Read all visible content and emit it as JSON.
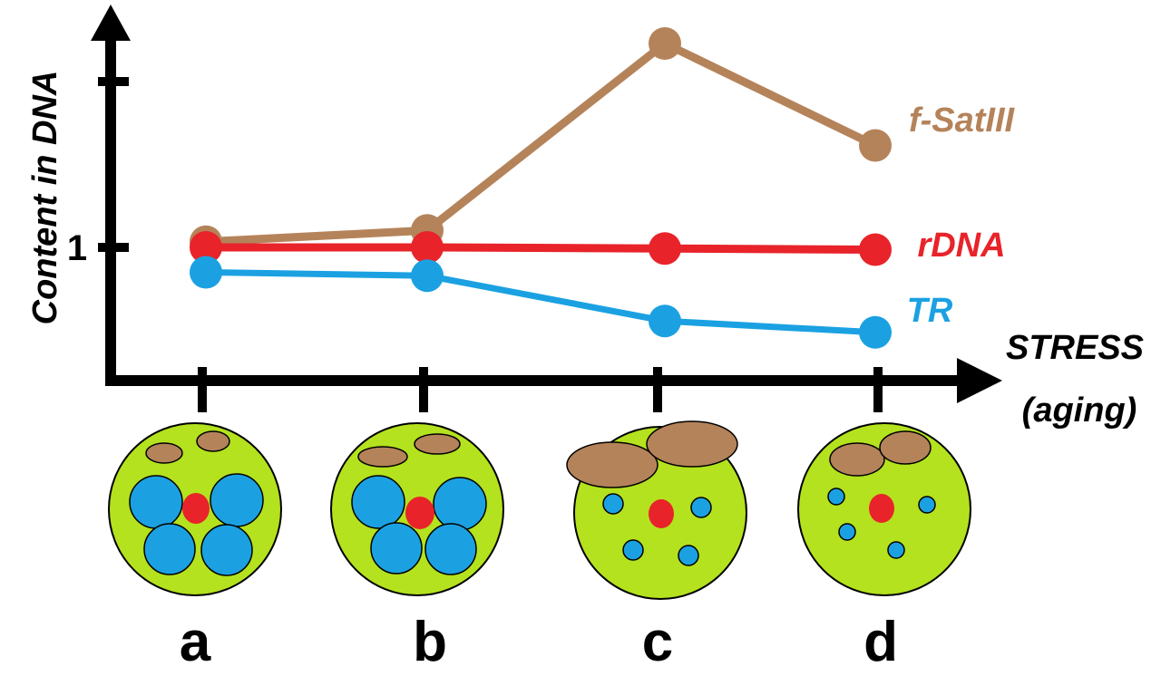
{
  "y_axis_label": "Content in DNA",
  "y_tick_label": "1",
  "x_axis_label": {
    "line1": "STRESS",
    "line2": "(aging)"
  },
  "categories": [
    "a",
    "b",
    "c",
    "d"
  ],
  "series": [
    {
      "name": "f-SatIII",
      "values": [
        1.05,
        1.15,
        2.8,
        1.9
      ],
      "color": "#b5835a"
    },
    {
      "name": "rDNA",
      "values": [
        1.0,
        1.0,
        0.99,
        0.98
      ],
      "color": "#e8232a"
    },
    {
      "name": "TR",
      "values": [
        0.78,
        0.75,
        0.35,
        0.25
      ],
      "color": "#1ba1e2"
    }
  ],
  "colors": {
    "nucleus": "#b4e21e",
    "satellite_body": "#b5835a",
    "tr_body": "#1ba1e2",
    "rdna_body": "#e8232a",
    "axis": "#000000"
  }
}
